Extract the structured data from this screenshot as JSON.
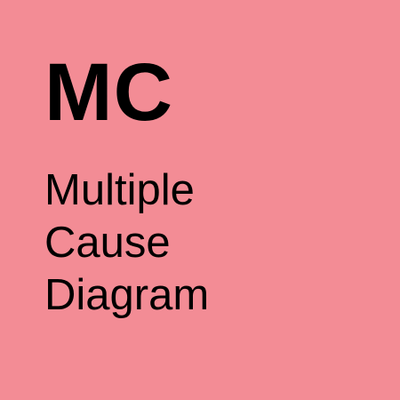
{
  "tile": {
    "background_color": "#f38c95",
    "abbreviation": "MC",
    "name_lines": [
      "Multiple",
      "Cause",
      "Diagram"
    ]
  }
}
